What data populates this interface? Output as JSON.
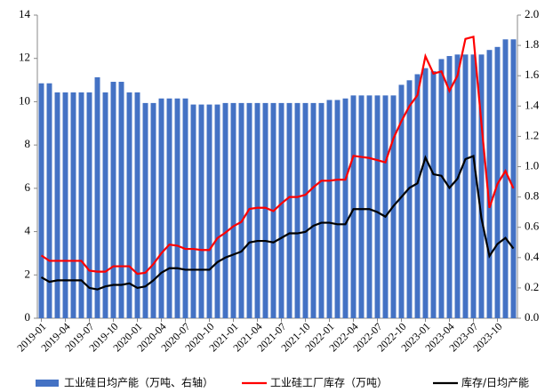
{
  "chart_data": {
    "type": "bar",
    "categories": [
      "2019-01",
      null,
      null,
      "2019-04",
      null,
      null,
      "2019-07",
      null,
      null,
      "2019-10",
      null,
      null,
      "2020-01",
      null,
      null,
      "2020-04",
      null,
      null,
      "2020-07",
      null,
      null,
      "2020-10",
      null,
      null,
      "2021-01",
      null,
      null,
      "2021-04",
      null,
      null,
      "2021-07",
      null,
      null,
      "2021-10",
      null,
      null,
      "2022-01",
      null,
      null,
      "2022-04",
      null,
      null,
      "2022-07",
      null,
      null,
      "2022-10",
      null,
      null,
      "2023-01",
      null,
      null,
      "2023-04",
      null,
      null,
      "2023-07",
      null,
      null,
      "2023-10",
      null,
      null
    ],
    "series": [
      {
        "name": "工业硅日均产能（万吨、右轴）",
        "type": "bar",
        "axis": "y2",
        "color": "#4472c4",
        "values": [
          1.55,
          1.55,
          1.49,
          1.49,
          1.49,
          1.49,
          1.49,
          1.59,
          1.49,
          1.56,
          1.56,
          1.49,
          1.49,
          1.42,
          1.42,
          1.45,
          1.45,
          1.45,
          1.45,
          1.41,
          1.41,
          1.41,
          1.41,
          1.42,
          1.42,
          1.42,
          1.42,
          1.42,
          1.42,
          1.42,
          1.42,
          1.42,
          1.42,
          1.42,
          1.42,
          1.42,
          1.44,
          1.44,
          1.45,
          1.47,
          1.47,
          1.47,
          1.47,
          1.47,
          1.47,
          1.54,
          1.57,
          1.61,
          1.65,
          1.63,
          1.71,
          1.73,
          1.74,
          1.74,
          1.74,
          1.74,
          1.77,
          1.79,
          1.84,
          1.84
        ]
      },
      {
        "name": "工业硅工厂库存（万吨）",
        "type": "line",
        "axis": "y",
        "color": "#ff0000",
        "values": [
          2.9,
          2.65,
          2.65,
          2.65,
          2.65,
          2.65,
          2.2,
          2.15,
          2.15,
          2.4,
          2.4,
          2.4,
          2.05,
          2.1,
          2.5,
          3.0,
          3.4,
          3.35,
          3.2,
          3.2,
          3.15,
          3.15,
          3.7,
          3.95,
          4.25,
          4.45,
          5.05,
          5.1,
          5.1,
          4.95,
          5.3,
          5.6,
          5.6,
          5.7,
          6.05,
          6.35,
          6.35,
          6.4,
          6.4,
          7.5,
          7.45,
          7.4,
          7.3,
          7.2,
          8.3,
          9.1,
          9.8,
          10.3,
          12.1,
          11.3,
          11.4,
          10.5,
          11.2,
          12.9,
          13.0,
          9.0,
          5.1,
          6.2,
          6.8,
          6.0
        ]
      },
      {
        "name": "库存/日均产能",
        "type": "line",
        "axis": "y2",
        "color": "#000000",
        "values": [
          0.27,
          0.24,
          0.25,
          0.25,
          0.25,
          0.25,
          0.2,
          0.19,
          0.21,
          0.22,
          0.22,
          0.23,
          0.2,
          0.21,
          0.25,
          0.3,
          0.33,
          0.33,
          0.32,
          0.32,
          0.32,
          0.32,
          0.37,
          0.4,
          0.42,
          0.44,
          0.5,
          0.51,
          0.51,
          0.5,
          0.53,
          0.56,
          0.56,
          0.57,
          0.61,
          0.63,
          0.63,
          0.62,
          0.62,
          0.72,
          0.72,
          0.72,
          0.7,
          0.67,
          0.74,
          0.8,
          0.86,
          0.89,
          1.06,
          0.95,
          0.94,
          0.86,
          0.92,
          1.05,
          1.07,
          0.66,
          0.41,
          0.49,
          0.53,
          0.46
        ]
      }
    ],
    "ylim": [
      0,
      14
    ],
    "yticks": [
      0,
      2,
      4,
      6,
      8,
      10,
      12,
      14
    ],
    "y2lim": [
      0,
      2
    ],
    "y2ticks": [
      {
        "value": 0,
        "label": "0.0"
      },
      0.2,
      0.4,
      0.6,
      0.8,
      {
        "value": 1,
        "label": "1.0"
      },
      1.2,
      1.4,
      1.6,
      1.8,
      {
        "value": 2,
        "label": "2.0"
      }
    ],
    "legend": "bottom"
  }
}
